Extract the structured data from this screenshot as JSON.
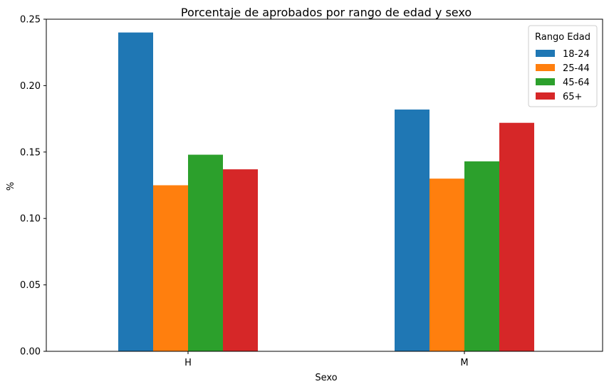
{
  "chart_data": {
    "type": "bar",
    "title": "Porcentaje de aprobados por rango de edad y sexo",
    "xlabel": "Sexo",
    "ylabel": "%",
    "categories": [
      "H",
      "M"
    ],
    "ylim": [
      0,
      0.25
    ],
    "yticks": [
      "0.00",
      "0.05",
      "0.10",
      "0.15",
      "0.20",
      "0.25"
    ],
    "grid": false,
    "legend": {
      "title": "Rango Edad",
      "placement": "top-right"
    },
    "series": [
      {
        "name": "18-24",
        "color": "#1f77b4",
        "values": [
          0.24,
          0.182
        ]
      },
      {
        "name": "25-44",
        "color": "#ff7f0e",
        "values": [
          0.125,
          0.13
        ]
      },
      {
        "name": "45-64",
        "color": "#2ca02c",
        "values": [
          0.148,
          0.143
        ]
      },
      {
        "name": "65+",
        "color": "#d62728",
        "values": [
          0.137,
          0.172
        ]
      }
    ]
  }
}
